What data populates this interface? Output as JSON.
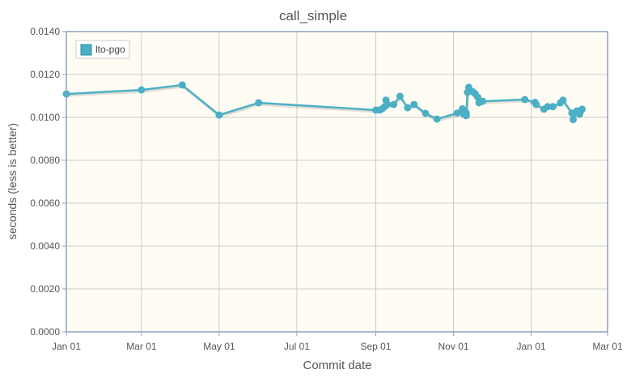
{
  "chart_data": {
    "type": "line",
    "title": "call_simple",
    "xlabel": "Commit date",
    "ylabel": "seconds (less is better)",
    "ylim": [
      0,
      0.014
    ],
    "xlim": [
      "2019-01-01",
      "2020-03-01"
    ],
    "yticks": [
      "0.0000",
      "0.0020",
      "0.0040",
      "0.0060",
      "0.0080",
      "0.0100",
      "0.0120",
      "0.0140"
    ],
    "xticks": [
      {
        "date": "2019-01-01",
        "label": "Jan 01"
      },
      {
        "date": "2019-03-01",
        "label": "Mar 01"
      },
      {
        "date": "2019-05-01",
        "label": "May 01"
      },
      {
        "date": "2019-07-01",
        "label": "Jul 01"
      },
      {
        "date": "2019-09-01",
        "label": "Sep 01"
      },
      {
        "date": "2019-11-01",
        "label": "Nov 01"
      },
      {
        "date": "2020-01-01",
        "label": "Jan 01"
      },
      {
        "date": "2020-03-01",
        "label": "Mar 01"
      }
    ],
    "grid": true,
    "legend": "top-left",
    "colors": {
      "series": "#4bb0c6",
      "plot_bg": "#fffcf3",
      "axis": "#8fa0c0",
      "grid": "#cccccc"
    },
    "series": [
      {
        "name": "lto-pgo",
        "x": [
          "2019-01-01",
          "2019-03-01",
          "2019-04-02",
          "2019-05-01",
          "2019-06-01",
          "2019-09-01",
          "2019-09-04",
          "2019-09-06",
          "2019-09-08",
          "2019-09-09",
          "2019-09-10",
          "2019-09-15",
          "2019-09-20",
          "2019-09-26",
          "2019-10-01",
          "2019-10-10",
          "2019-10-19",
          "2019-11-04",
          "2019-11-08",
          "2019-11-09",
          "2019-11-11",
          "2019-11-11",
          "2019-11-12",
          "2019-11-13",
          "2019-11-16",
          "2019-11-18",
          "2019-11-20",
          "2019-11-21",
          "2019-11-23",
          "2019-11-24",
          "2019-12-27",
          "2020-01-04",
          "2020-01-05",
          "2020-01-11",
          "2020-01-14",
          "2020-01-18",
          "2020-01-24",
          "2020-01-26",
          "2020-02-02",
          "2020-02-03",
          "2020-02-06",
          "2020-02-08",
          "2020-02-09",
          "2020-02-10"
        ],
        "y": [
          0.01109,
          0.01128,
          0.01151,
          0.01011,
          0.01068,
          0.01034,
          0.01034,
          0.0104,
          0.0105,
          0.0108,
          0.0106,
          0.0106,
          0.01098,
          0.01045,
          0.0106,
          0.01019,
          0.00992,
          0.0102,
          0.0104,
          0.01015,
          0.0102,
          0.01008,
          0.01117,
          0.0114,
          0.0112,
          0.0111,
          0.01094,
          0.01068,
          0.01075,
          0.01075,
          0.01083,
          0.0107,
          0.0106,
          0.01038,
          0.0105,
          0.0105,
          0.01068,
          0.0108,
          0.0102,
          0.0099,
          0.0103,
          0.01015,
          0.0103,
          0.01038
        ]
      }
    ]
  }
}
